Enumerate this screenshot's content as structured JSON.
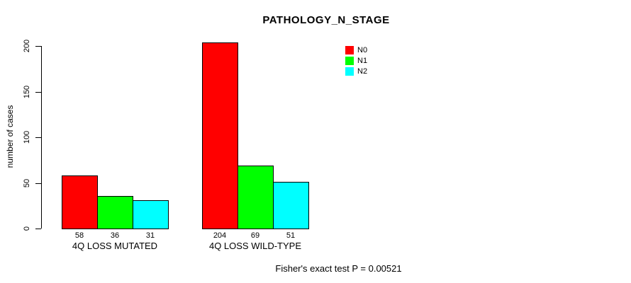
{
  "chart_data": {
    "type": "bar",
    "title": "PATHOLOGY_N_STAGE",
    "xlabel": "",
    "ylabel": "number of cases",
    "categories": [
      "4Q LOSS MUTATED",
      "4Q LOSS WILD-TYPE"
    ],
    "series": [
      {
        "name": "N0",
        "color": "#ff0000",
        "values": [
          58,
          204
        ]
      },
      {
        "name": "N1",
        "color": "#00ff00",
        "values": [
          36,
          69
        ]
      },
      {
        "name": "N2",
        "color": "#00ffff",
        "values": [
          31,
          51
        ]
      }
    ],
    "bar_value_labels": [
      [
        "58",
        "36",
        "31"
      ],
      [
        "204",
        "69",
        "51"
      ]
    ],
    "ylim": [
      0,
      200
    ],
    "yticks": [
      0,
      50,
      100,
      150,
      200
    ],
    "grid": false,
    "legend_position": "top-right",
    "bar_border_color": "#000000",
    "background_color": "#ffffff",
    "annotation": "Fisher's exact test P = 0.00521"
  }
}
